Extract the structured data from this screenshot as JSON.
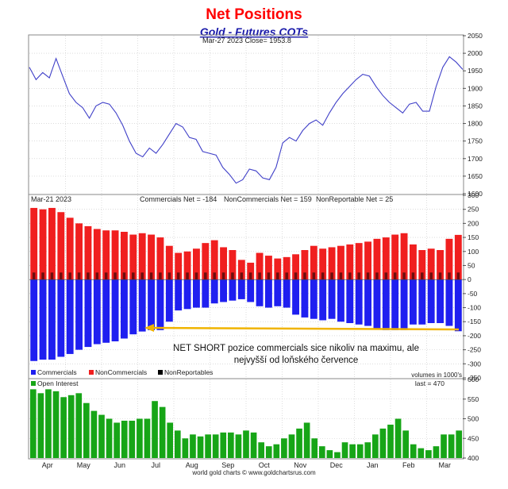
{
  "header": {
    "title": "Net Positions",
    "subtitle": "Gold - Futures COTs"
  },
  "colors": {
    "title": "#ff0000",
    "subtitle": "#1a1aaa",
    "price_line": "#4040c8",
    "commercials": "#1f1ff0",
    "noncommercials": "#f01f1f",
    "nonreportables": "#000000",
    "open_interest": "#17a517",
    "arrow": "#f0b400",
    "grid": "#c8c8c8"
  },
  "price_panel": {
    "readout": "Mar-27  2023   Close= 1953.8"
  },
  "net_panel": {
    "date": "Mar-21  2023",
    "commercials_readout": "Commercials Net = -184",
    "noncommercials_readout": "NonCommercials Net = 159",
    "nonreportable_readout": "NonReportable Net = 25",
    "legend": [
      "Commercials",
      "NonCommercials",
      "NonReportables"
    ],
    "units_note": "volumes in 1000's",
    "annotation_line1": "NET SHORT pozice commercials sice nikoliv na maximu, ale",
    "annotation_line2": "nejvyšší od loňského července"
  },
  "oi_panel": {
    "legend": "Open Interest",
    "last_readout": "last = 470"
  },
  "footer": {
    "credit": "world gold charts © www.goldchartsrus.com"
  },
  "chart_data": [
    {
      "type": "line",
      "title": "Gold - Futures COTs",
      "series": [
        {
          "name": "Gold price",
          "values": [
            1960,
            1925,
            1945,
            1930,
            1985,
            1935,
            1885,
            1860,
            1845,
            1815,
            1850,
            1860,
            1855,
            1830,
            1795,
            1750,
            1715,
            1705,
            1730,
            1715,
            1740,
            1770,
            1800,
            1790,
            1760,
            1755,
            1720,
            1715,
            1710,
            1675,
            1655,
            1630,
            1640,
            1670,
            1665,
            1645,
            1640,
            1675,
            1745,
            1760,
            1750,
            1780,
            1800,
            1810,
            1795,
            1830,
            1860,
            1885,
            1905,
            1925,
            1940,
            1935,
            1905,
            1880,
            1860,
            1845,
            1830,
            1855,
            1860,
            1835,
            1835,
            1905,
            1960,
            1990,
            1975,
            1953.8
          ]
        }
      ],
      "x_range": [
        "2022-04-01",
        "2023-03-27"
      ],
      "ylim": [
        1600,
        2050
      ],
      "yticks": [
        1600,
        1650,
        1700,
        1750,
        1800,
        1850,
        1900,
        1950,
        2000,
        2050
      ],
      "grid": true
    },
    {
      "type": "bar",
      "title": "Net Positions",
      "series": [
        {
          "name": "Commercials",
          "values": [
            -290,
            -285,
            -285,
            -275,
            -265,
            -250,
            -240,
            -230,
            -225,
            -220,
            -210,
            -195,
            -185,
            -180,
            -180,
            -150,
            -110,
            -105,
            -100,
            -100,
            -85,
            -80,
            -75,
            -70,
            -80,
            -95,
            -100,
            -95,
            -100,
            -125,
            -135,
            -140,
            -145,
            -140,
            -150,
            -155,
            -160,
            -165,
            -175,
            -180,
            -180,
            -180,
            -160,
            -160,
            -155,
            -155,
            -165,
            -184
          ]
        },
        {
          "name": "NonCommercials",
          "values": [
            255,
            250,
            255,
            240,
            220,
            200,
            190,
            180,
            175,
            175,
            170,
            160,
            165,
            160,
            150,
            120,
            95,
            100,
            110,
            130,
            140,
            115,
            105,
            70,
            60,
            95,
            85,
            75,
            80,
            90,
            105,
            120,
            110,
            115,
            120,
            125,
            130,
            135,
            145,
            150,
            160,
            165,
            125,
            105,
            110,
            105,
            145,
            159
          ]
        },
        {
          "name": "NonReportables",
          "values": [
            25,
            25,
            25,
            25,
            25,
            25,
            25,
            25,
            25,
            25,
            25,
            25,
            25,
            25,
            25,
            25,
            25,
            25,
            25,
            25,
            25,
            25,
            25,
            25,
            25,
            25,
            25,
            25,
            25,
            25,
            25,
            25,
            25,
            25,
            25,
            25,
            25,
            25,
            25,
            25,
            25,
            25,
            25,
            25,
            25,
            25,
            25,
            25
          ]
        }
      ],
      "ylim": [
        -350,
        300
      ],
      "yticks": [
        -350,
        -300,
        -250,
        -200,
        -150,
        -100,
        -50,
        0,
        50,
        100,
        150,
        200,
        250,
        300
      ],
      "ylabel": "volumes in 1000's",
      "grid": true
    },
    {
      "type": "bar",
      "title": "Open Interest",
      "series": [
        {
          "name": "Open Interest",
          "values": [
            575,
            565,
            575,
            570,
            555,
            560,
            565,
            540,
            520,
            510,
            500,
            490,
            495,
            495,
            500,
            500,
            545,
            530,
            490,
            470,
            450,
            460,
            455,
            460,
            460,
            465,
            465,
            460,
            470,
            465,
            440,
            430,
            435,
            450,
            460,
            475,
            490,
            450,
            430,
            420,
            415,
            440,
            435,
            435,
            440,
            460,
            475,
            485,
            500,
            470,
            435,
            425,
            420,
            430,
            460,
            460,
            470
          ]
        }
      ],
      "ylim": [
        400,
        600
      ],
      "yticks": [
        400,
        450,
        500,
        550,
        600
      ],
      "grid": true
    }
  ],
  "x_axis": {
    "months": [
      "Apr",
      "May",
      "Jun",
      "Jul",
      "Aug",
      "Sep",
      "Oct",
      "Nov",
      "Dec",
      "Jan",
      "Feb",
      "Mar"
    ]
  }
}
